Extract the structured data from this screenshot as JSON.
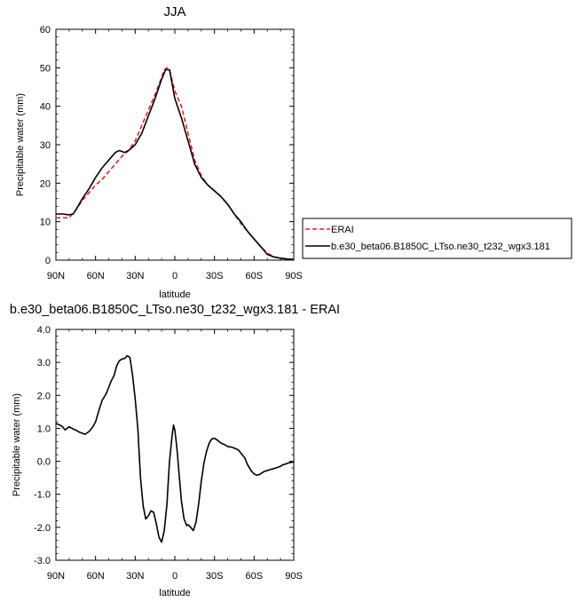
{
  "chart_data": [
    {
      "type": "line",
      "title": "JJA",
      "xlabel": "latitude",
      "ylabel": "Precipitable water (mm)",
      "xlim": [
        90,
        -90
      ],
      "ylim": [
        0,
        60
      ],
      "x_ticks": [
        90,
        60,
        30,
        0,
        -30,
        -60,
        -90
      ],
      "x_tick_labels": [
        "90N",
        "60N",
        "30N",
        "0",
        "30S",
        "60S",
        "90S"
      ],
      "y_ticks": [
        0,
        10,
        20,
        30,
        40,
        50,
        60
      ],
      "y_tick_labels": [
        "0",
        "10",
        "20",
        "30",
        "40",
        "50",
        "60"
      ],
      "grid": false,
      "legend_position": "right",
      "series": [
        {
          "name": "ERAI",
          "color": "#e8201c",
          "dash": "dashed",
          "x": [
            90,
            85,
            80,
            75,
            70,
            65,
            60,
            55,
            50,
            45,
            40,
            35,
            30,
            25,
            20,
            15,
            10,
            8,
            6,
            4,
            0,
            -5,
            -10,
            -15,
            -20,
            -25,
            -30,
            -35,
            -40,
            -45,
            -50,
            -55,
            -60,
            -65,
            -70,
            -75,
            -80,
            -85,
            -90
          ],
          "y": [
            11,
            11,
            11,
            13,
            15.5,
            17.5,
            19.5,
            21,
            23,
            25,
            27,
            28.5,
            31,
            35,
            39,
            43,
            47.5,
            49.5,
            50,
            49.5,
            44,
            40,
            33,
            26,
            22,
            19.5,
            18,
            16.5,
            14.5,
            12,
            9.5,
            7.5,
            5.5,
            3.5,
            1.8,
            0.9,
            0.5,
            0.3,
            0.1
          ]
        },
        {
          "name": "b.e30_beta06.B1850C_LTso.ne30_t232_wgx3.181",
          "color": "#000000",
          "dash": "solid",
          "x": [
            90,
            85,
            80,
            77,
            75,
            70,
            65,
            60,
            55,
            50,
            45,
            42,
            38,
            35,
            30,
            25,
            20,
            15,
            10,
            7,
            4,
            0,
            -5,
            -10,
            -15,
            -20,
            -25,
            -30,
            -35,
            -40,
            -45,
            -50,
            -55,
            -60,
            -65,
            -70,
            -75,
            -80,
            -85,
            -90
          ],
          "y": [
            12,
            12,
            11.8,
            12,
            13,
            16,
            18.5,
            21.5,
            24,
            26,
            28,
            28.5,
            28,
            28.5,
            30,
            33,
            37.5,
            42,
            47,
            49.5,
            49.5,
            42,
            37,
            31,
            25,
            21.5,
            19.5,
            18,
            16.5,
            14.5,
            12,
            10,
            7.5,
            5.5,
            3.5,
            1.5,
            0.8,
            0.5,
            0.3,
            0.2
          ]
        }
      ]
    },
    {
      "type": "line",
      "title": "b.e30_beta06.B1850C_LTso.ne30_t232_wgx3.181 - ERAI",
      "xlabel": "latitude",
      "ylabel": "Precipitable water (mm)",
      "xlim": [
        90,
        -90
      ],
      "ylim": [
        -3,
        4
      ],
      "x_ticks": [
        90,
        60,
        30,
        0,
        -30,
        -60,
        -90
      ],
      "x_tick_labels": [
        "90N",
        "60N",
        "30N",
        "0",
        "30S",
        "60S",
        "90S"
      ],
      "y_ticks": [
        4,
        3,
        2,
        1,
        0,
        -1,
        -2,
        -3
      ],
      "y_tick_labels": [
        "4.0",
        "3.0",
        "2.0",
        "1.0",
        "0.0",
        "-1.0",
        "-2.0",
        "-3.0"
      ],
      "grid": false,
      "series": [
        {
          "color": "#000000",
          "dash": "solid",
          "x": [
            90,
            87,
            85,
            83,
            80,
            77,
            75,
            72,
            70,
            68,
            65,
            62,
            60,
            57,
            55,
            52,
            50,
            48,
            46,
            45,
            44,
            42,
            40,
            38,
            36,
            34,
            32,
            30,
            28,
            26,
            24,
            22,
            20,
            18,
            16,
            14,
            12,
            10,
            8,
            6,
            5,
            4,
            3,
            2,
            1,
            0,
            -1,
            -2,
            -3,
            -5,
            -7,
            -9,
            -10,
            -12,
            -14,
            -16,
            -18,
            -20,
            -22,
            -24,
            -26,
            -28,
            -30,
            -32,
            -35,
            -38,
            -40,
            -43,
            -45,
            -48,
            -50,
            -53,
            -55,
            -58,
            -60,
            -62,
            -64,
            -66,
            -68,
            -70,
            -72,
            -75,
            -78,
            -80,
            -82,
            -84,
            -86,
            -88,
            -90
          ],
          "y": [
            1.15,
            1.1,
            1.05,
            0.95,
            1.05,
            0.98,
            0.95,
            0.88,
            0.85,
            0.82,
            0.9,
            1.05,
            1.2,
            1.6,
            1.85,
            2.05,
            2.25,
            2.45,
            2.6,
            2.75,
            2.9,
            3.05,
            3.1,
            3.12,
            3.2,
            3.15,
            2.6,
            1.9,
            1.0,
            -0.5,
            -1.35,
            -1.75,
            -1.65,
            -1.5,
            -1.55,
            -1.9,
            -2.3,
            -2.45,
            -2.1,
            -1.3,
            -0.6,
            0.0,
            0.4,
            0.8,
            1.1,
            0.95,
            0.6,
            0.2,
            -0.3,
            -1.2,
            -1.75,
            -1.95,
            -1.92,
            -2.0,
            -2.1,
            -1.85,
            -1.3,
            -0.6,
            -0.05,
            0.3,
            0.55,
            0.68,
            0.7,
            0.65,
            0.55,
            0.5,
            0.45,
            0.43,
            0.4,
            0.35,
            0.25,
            0.1,
            -0.1,
            -0.3,
            -0.38,
            -0.42,
            -0.4,
            -0.35,
            -0.3,
            -0.28,
            -0.25,
            -0.22,
            -0.18,
            -0.15,
            -0.1,
            -0.08,
            -0.05,
            -0.03,
            -0.02
          ]
        }
      ]
    }
  ]
}
